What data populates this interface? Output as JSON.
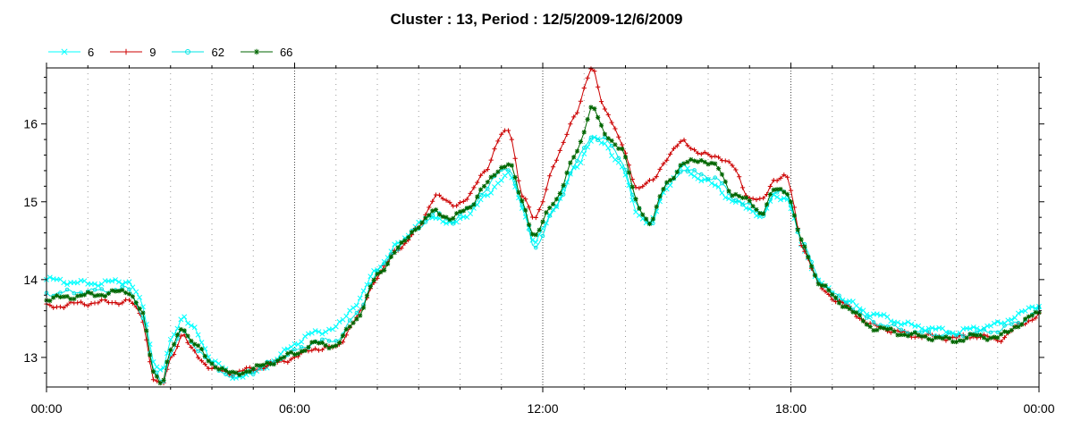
{
  "chart_data": {
    "type": "line",
    "title": "Cluster : 13, Period : 12/5/2009-12/6/2009",
    "x_ticks": [
      "00:00",
      "06:00",
      "12:00",
      "18:00",
      "00:00"
    ],
    "x_range_hours": [
      0,
      24
    ],
    "y_ticks": [
      "13",
      "14",
      "15",
      "16"
    ],
    "ylim": [
      12.62,
      16.72
    ],
    "grid": "dotted",
    "legend_position": "top-left",
    "x_hours": [
      0,
      1,
      2,
      2.3,
      2.6,
      2.8,
      3,
      3.3,
      3.5,
      4,
      4.5,
      5,
      5.5,
      6,
      6.5,
      7,
      7.5,
      8,
      8.5,
      9,
      9.4,
      9.8,
      10.2,
      10.6,
      11,
      11.2,
      11.5,
      11.8,
      12.3,
      12.8,
      13.2,
      13.5,
      13.9,
      14.3,
      14.6,
      15,
      15.4,
      15.8,
      16.2,
      16.6,
      17,
      17.3,
      17.6,
      17.9,
      18.3,
      18.7,
      19.2,
      20,
      21,
      22,
      22.5,
      23,
      23.5,
      24
    ],
    "series": [
      {
        "name": "6",
        "color": "#00ffff",
        "marker": "x",
        "values": [
          14.0,
          13.95,
          13.98,
          13.7,
          12.95,
          12.8,
          13.2,
          13.55,
          13.4,
          12.98,
          12.75,
          12.8,
          12.95,
          13.18,
          13.32,
          13.38,
          13.7,
          14.15,
          14.45,
          14.72,
          14.82,
          14.7,
          14.85,
          15.05,
          15.3,
          15.35,
          14.95,
          14.45,
          14.95,
          15.45,
          15.8,
          15.75,
          15.45,
          14.85,
          14.7,
          15.2,
          15.45,
          15.3,
          15.2,
          15.0,
          14.92,
          14.8,
          15.08,
          15.05,
          14.4,
          13.95,
          13.75,
          13.55,
          13.4,
          13.32,
          13.38,
          13.42,
          13.55,
          13.68
        ]
      },
      {
        "name": "9",
        "color": "#cc0000",
        "marker": "+",
        "values": [
          13.65,
          13.7,
          13.72,
          13.55,
          12.7,
          12.62,
          13.0,
          13.3,
          13.1,
          12.85,
          12.8,
          12.85,
          12.92,
          13.0,
          13.12,
          13.12,
          13.5,
          14.05,
          14.4,
          14.65,
          15.1,
          14.95,
          15.05,
          15.4,
          15.85,
          15.92,
          15.1,
          14.75,
          15.5,
          16.15,
          16.72,
          16.2,
          15.75,
          15.15,
          15.25,
          15.55,
          15.8,
          15.6,
          15.6,
          15.45,
          15.05,
          15.0,
          15.3,
          15.32,
          14.4,
          13.9,
          13.7,
          13.4,
          13.28,
          13.25,
          13.28,
          13.22,
          13.4,
          13.55
        ]
      },
      {
        "name": "62",
        "color": "#00e6e6",
        "marker": "circle",
        "values": [
          13.82,
          13.85,
          13.88,
          13.58,
          12.82,
          12.68,
          13.05,
          13.35,
          13.2,
          12.9,
          12.75,
          12.82,
          12.95,
          13.08,
          13.2,
          13.22,
          13.55,
          14.1,
          14.42,
          14.68,
          14.85,
          14.75,
          14.9,
          15.15,
          15.4,
          15.45,
          14.95,
          14.4,
          14.9,
          15.5,
          15.85,
          15.8,
          15.55,
          14.9,
          14.7,
          15.22,
          15.42,
          15.35,
          15.3,
          15.05,
          14.95,
          14.82,
          15.12,
          15.1,
          14.45,
          13.98,
          13.75,
          13.45,
          13.32,
          13.28,
          13.32,
          13.35,
          13.45,
          13.6
        ]
      },
      {
        "name": "66",
        "color": "#006600",
        "marker": "star",
        "values": [
          13.75,
          13.8,
          13.85,
          13.6,
          12.8,
          12.68,
          13.08,
          13.4,
          13.22,
          12.92,
          12.78,
          12.85,
          12.95,
          13.05,
          13.18,
          13.15,
          13.5,
          14.05,
          14.4,
          14.7,
          14.88,
          14.78,
          14.92,
          15.2,
          15.45,
          15.5,
          15.0,
          14.55,
          15.02,
          15.6,
          16.25,
          15.85,
          15.7,
          14.95,
          14.72,
          15.25,
          15.48,
          15.55,
          15.45,
          15.1,
          15.0,
          14.85,
          15.15,
          15.15,
          14.42,
          13.95,
          13.7,
          13.38,
          13.28,
          13.22,
          13.28,
          13.25,
          13.42,
          13.58
        ]
      }
    ]
  }
}
